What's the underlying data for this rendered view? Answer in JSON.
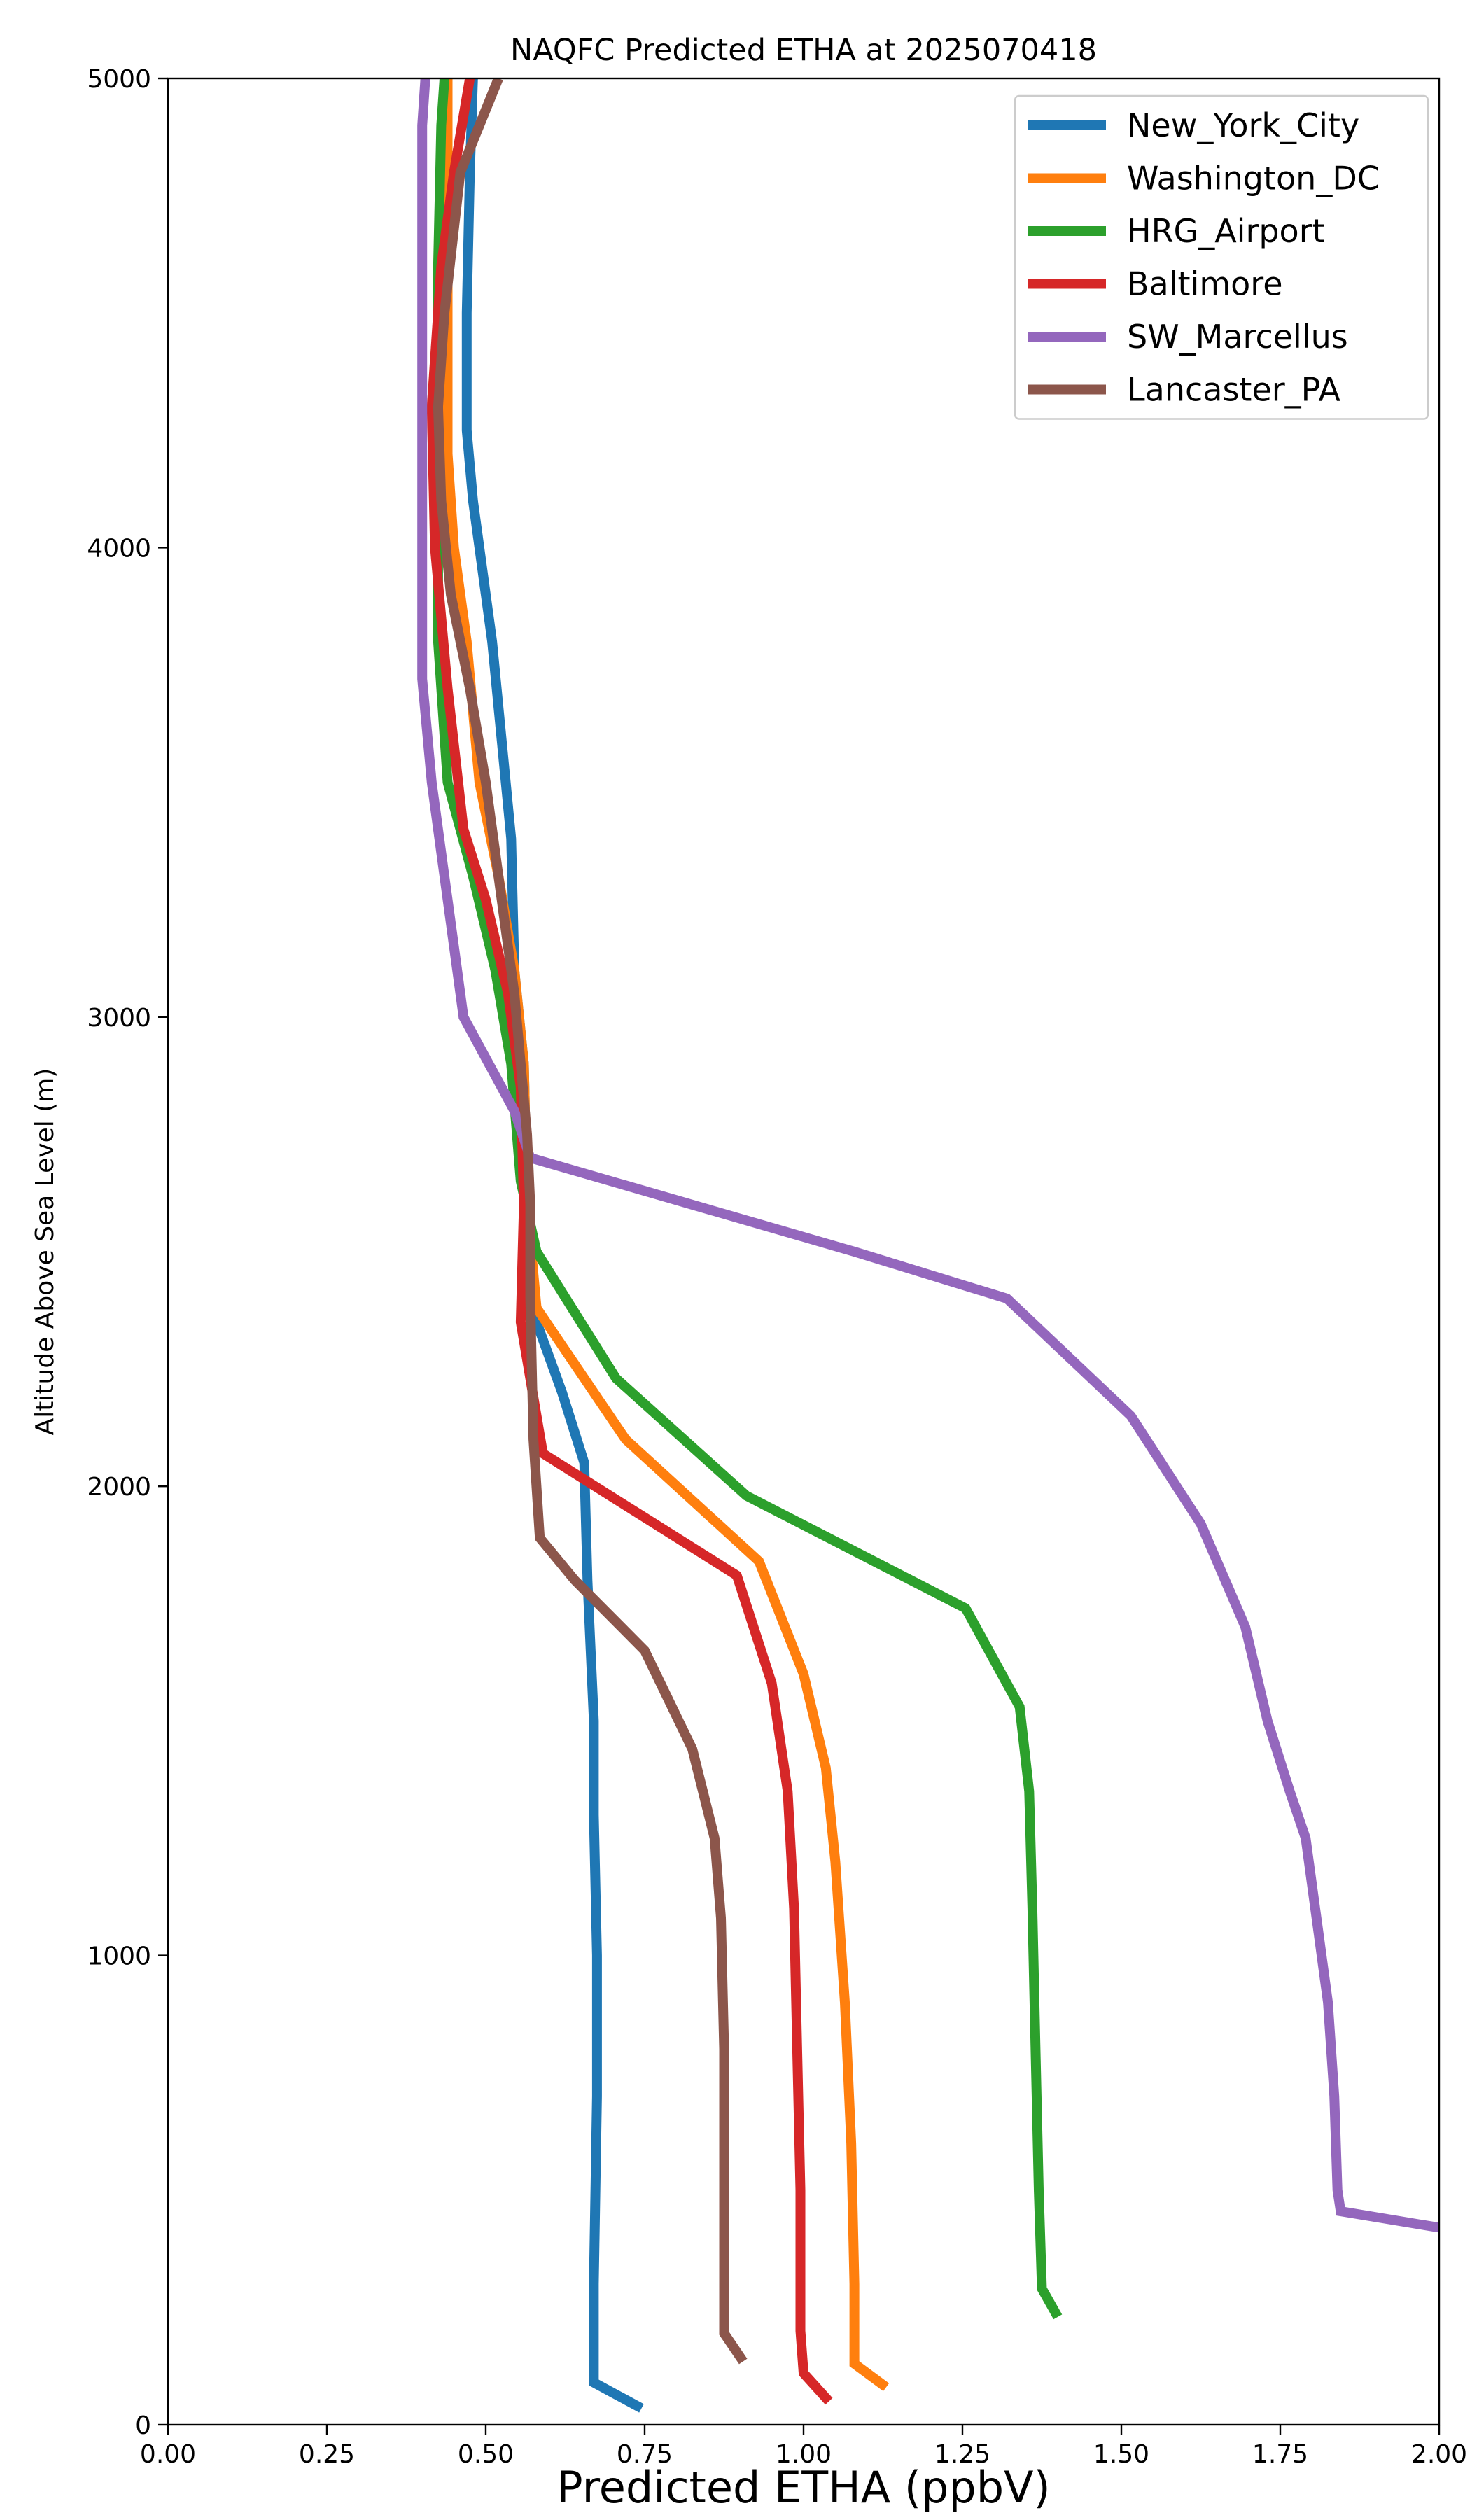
{
  "chart_data": {
    "type": "line",
    "title": "NAQFC Predicted ETHA at 2025070418",
    "xlabel": "Predicted ETHA (ppbV)",
    "ylabel": "Altitude Above Sea Level (m)",
    "xlim": [
      0,
      2.0
    ],
    "ylim": [
      0,
      5000
    ],
    "xticks": [
      "0.00",
      "0.25",
      "0.50",
      "0.75",
      "1.00",
      "1.25",
      "1.50",
      "1.75",
      "2.00"
    ],
    "yticks": [
      "0",
      "1000",
      "2000",
      "3000",
      "4000",
      "5000"
    ],
    "grid": false,
    "legend_position": "top-right",
    "series": [
      {
        "name": "New_York_City",
        "color": "#1f77b4",
        "points": [
          [
            0.745,
            35
          ],
          [
            0.67,
            90
          ],
          [
            0.67,
            180
          ],
          [
            0.67,
            300
          ],
          [
            0.675,
            700
          ],
          [
            0.675,
            1000
          ],
          [
            0.67,
            1300
          ],
          [
            0.67,
            1500
          ],
          [
            0.66,
            1800
          ],
          [
            0.655,
            2050
          ],
          [
            0.62,
            2200
          ],
          [
            0.58,
            2350
          ],
          [
            0.565,
            2600
          ],
          [
            0.56,
            2900
          ],
          [
            0.545,
            3100
          ],
          [
            0.54,
            3380
          ],
          [
            0.51,
            3800
          ],
          [
            0.49,
            4000
          ],
          [
            0.48,
            4100
          ],
          [
            0.47,
            4250
          ],
          [
            0.47,
            4500
          ],
          [
            0.475,
            4800
          ],
          [
            0.48,
            5000
          ]
        ]
      },
      {
        "name": "Washington_DC",
        "color": "#ff7f0e",
        "points": [
          [
            1.13,
            80
          ],
          [
            1.08,
            130
          ],
          [
            1.08,
            300
          ],
          [
            1.075,
            600
          ],
          [
            1.065,
            900
          ],
          [
            1.05,
            1200
          ],
          [
            1.035,
            1400
          ],
          [
            1.0,
            1600
          ],
          [
            0.93,
            1840
          ],
          [
            0.72,
            2100
          ],
          [
            0.58,
            2380
          ],
          [
            0.565,
            2600
          ],
          [
            0.56,
            2900
          ],
          [
            0.545,
            3100
          ],
          [
            0.52,
            3300
          ],
          [
            0.49,
            3500
          ],
          [
            0.47,
            3800
          ],
          [
            0.45,
            4000
          ],
          [
            0.44,
            4200
          ],
          [
            0.44,
            4500
          ],
          [
            0.44,
            4800
          ],
          [
            0.44,
            5000
          ]
        ]
      },
      {
        "name": "HRG_Airport",
        "color": "#2ca02c",
        "points": [
          [
            1.4,
            230
          ],
          [
            1.375,
            290
          ],
          [
            1.37,
            500
          ],
          [
            1.365,
            800
          ],
          [
            1.36,
            1100
          ],
          [
            1.355,
            1350
          ],
          [
            1.34,
            1530
          ],
          [
            1.255,
            1740
          ],
          [
            0.91,
            1980
          ],
          [
            0.705,
            2230
          ],
          [
            0.58,
            2500
          ],
          [
            0.555,
            2650
          ],
          [
            0.54,
            2900
          ],
          [
            0.515,
            3100
          ],
          [
            0.48,
            3300
          ],
          [
            0.44,
            3500
          ],
          [
            0.425,
            3800
          ],
          [
            0.425,
            4000
          ],
          [
            0.425,
            4300
          ],
          [
            0.425,
            4600
          ],
          [
            0.43,
            4900
          ],
          [
            0.435,
            5000
          ]
        ]
      },
      {
        "name": "Baltimore",
        "color": "#d62728",
        "points": [
          [
            1.04,
            50
          ],
          [
            1.0,
            110
          ],
          [
            0.995,
            200
          ],
          [
            0.995,
            500
          ],
          [
            0.99,
            800
          ],
          [
            0.985,
            1100
          ],
          [
            0.975,
            1350
          ],
          [
            0.95,
            1580
          ],
          [
            0.895,
            1810
          ],
          [
            0.59,
            2070
          ],
          [
            0.555,
            2350
          ],
          [
            0.56,
            2600
          ],
          [
            0.555,
            2850
          ],
          [
            0.535,
            3050
          ],
          [
            0.5,
            3250
          ],
          [
            0.465,
            3400
          ],
          [
            0.44,
            3700
          ],
          [
            0.42,
            4000
          ],
          [
            0.415,
            4300
          ],
          [
            0.43,
            4600
          ],
          [
            0.45,
            4800
          ],
          [
            0.475,
            5000
          ]
        ]
      },
      {
        "name": "SW_Marcellus",
        "color": "#9467bd",
        "points": [
          [
            2.0,
            420
          ],
          [
            1.845,
            455
          ],
          [
            1.84,
            500
          ],
          [
            1.835,
            700
          ],
          [
            1.825,
            900
          ],
          [
            1.81,
            1050
          ],
          [
            1.79,
            1250
          ],
          [
            1.765,
            1350
          ],
          [
            1.73,
            1500
          ],
          [
            1.695,
            1700
          ],
          [
            1.625,
            1920
          ],
          [
            1.515,
            2150
          ],
          [
            1.32,
            2400
          ],
          [
            1.08,
            2500
          ],
          [
            0.57,
            2700
          ],
          [
            0.545,
            2800
          ],
          [
            0.505,
            2900
          ],
          [
            0.465,
            3000
          ],
          [
            0.45,
            3150
          ],
          [
            0.43,
            3350
          ],
          [
            0.415,
            3500
          ],
          [
            0.4,
            3720
          ],
          [
            0.4,
            4000
          ],
          [
            0.4,
            4300
          ],
          [
            0.4,
            4600
          ],
          [
            0.4,
            4900
          ],
          [
            0.405,
            5000
          ]
        ]
      },
      {
        "name": "Lancaster_PA",
        "color": "#8c564b",
        "points": [
          [
            0.905,
            135
          ],
          [
            0.875,
            195
          ],
          [
            0.875,
            500
          ],
          [
            0.875,
            800
          ],
          [
            0.87,
            1080
          ],
          [
            0.86,
            1250
          ],
          [
            0.825,
            1440
          ],
          [
            0.75,
            1650
          ],
          [
            0.64,
            1800
          ],
          [
            0.585,
            1890
          ],
          [
            0.575,
            2100
          ],
          [
            0.57,
            2400
          ],
          [
            0.57,
            2600
          ],
          [
            0.565,
            2750
          ],
          [
            0.555,
            2900
          ],
          [
            0.545,
            3050
          ],
          [
            0.525,
            3250
          ],
          [
            0.5,
            3500
          ],
          [
            0.475,
            3700
          ],
          [
            0.445,
            3900
          ],
          [
            0.43,
            4100
          ],
          [
            0.425,
            4300
          ],
          [
            0.435,
            4500
          ],
          [
            0.46,
            4800
          ],
          [
            0.52,
            5000
          ]
        ]
      }
    ]
  }
}
